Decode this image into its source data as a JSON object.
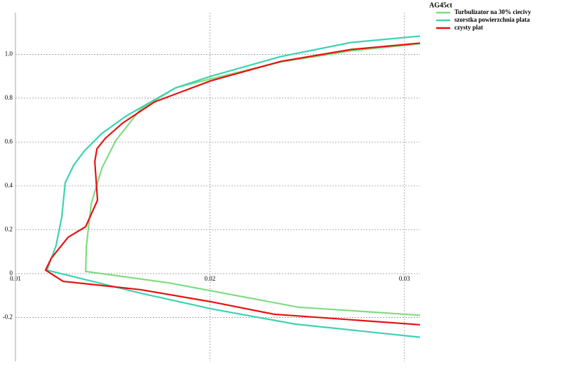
{
  "chart_data": {
    "type": "line",
    "title": "AG45ct",
    "xlim": [
      0.01,
      0.0308
    ],
    "xticks": [
      0.01,
      0.02,
      0.03
    ],
    "ylim": [
      -0.4,
      1.19
    ],
    "yticks": [
      -0.2,
      0,
      0.2,
      0.4,
      0.6,
      0.8,
      {
        "value": 1,
        "label": "1.0"
      }
    ],
    "grid": true,
    "legend": "top-right",
    "series": [
      {
        "name": "Turbulizator na 30% ciecivy",
        "color": "#7fdc7f",
        "x": [
          0.03083,
          0.02455,
          0.01787,
          0.01361,
          0.01365,
          0.0139,
          0.01444,
          0.01516,
          0.01643,
          0.01823,
          0.02004,
          0.02365,
          0.02726,
          0.0308
        ],
        "values": [
          -0.19,
          -0.153,
          -0.042,
          0.01,
          0.128,
          0.32,
          0.48,
          0.607,
          0.75,
          0.847,
          0.888,
          0.965,
          1.016,
          1.048
        ]
      },
      {
        "name": "szorstka powierzchnia plata",
        "color": "#3cd3b0",
        "x": [
          0.0308,
          0.02437,
          0.02004,
          0.01643,
          0.01162,
          0.01209,
          0.01238,
          0.01256,
          0.013,
          0.01354,
          0.01444,
          0.0157,
          0.01823,
          0.02004,
          0.02365,
          0.02726,
          0.0308
        ],
        "values": [
          -0.29,
          -0.23,
          -0.16,
          -0.089,
          0.016,
          0.128,
          0.256,
          0.415,
          0.495,
          0.559,
          0.639,
          0.719,
          0.847,
          0.9,
          0.99,
          1.054,
          1.083
        ]
      },
      {
        "name": "czysty plat",
        "color": "#e81010",
        "x": [
          0.0308,
          0.02329,
          0.02004,
          0.01643,
          0.01245,
          0.01155,
          0.01184,
          0.01271,
          0.01361,
          0.01422,
          0.01408,
          0.01419,
          0.01462,
          0.01552,
          0.01715,
          0.02004,
          0.02365,
          0.02726,
          0.0308
        ],
        "values": [
          -0.233,
          -0.185,
          -0.128,
          -0.073,
          -0.035,
          0.016,
          0.07,
          0.166,
          0.214,
          0.335,
          0.511,
          0.569,
          0.617,
          0.687,
          0.783,
          0.879,
          0.968,
          1.022,
          1.051
        ]
      }
    ]
  }
}
